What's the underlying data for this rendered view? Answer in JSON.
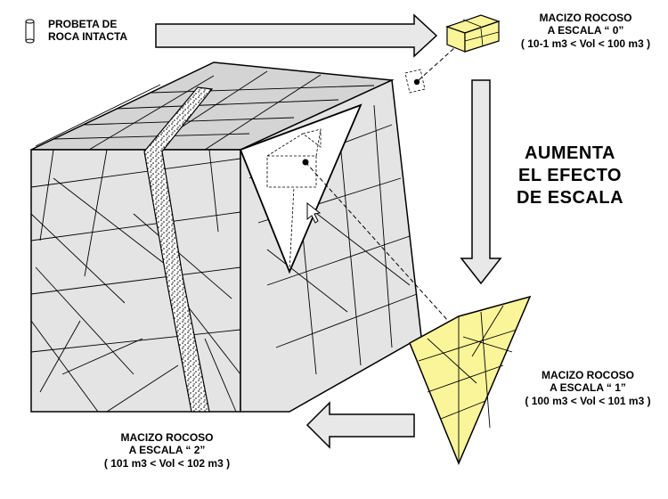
{
  "labels": {
    "probeta": {
      "line1": "PROBETA DE",
      "line2": "ROCA INTACTA"
    },
    "scale0": {
      "line1": "MACIZO ROCOSO",
      "line2": "A ESCALA “ 0”",
      "line3": "( 10-1 m3 < Vol < 100 m3 )"
    },
    "scale1": {
      "line1": "MACIZO ROCOSO",
      "line2": "A ESCALA “ 1”",
      "line3": "( 100 m3 < Vol < 101 m3 )"
    },
    "scale2": {
      "line1": "MACIZO ROCOSO",
      "line2": "A ESCALA “ 2”",
      "line3": "( 101 m3 < Vol < 102 m3 )"
    },
    "effect": {
      "line1": "AUMENTA",
      "line2": "EL EFECTO",
      "line3": "DE ESCALA"
    }
  },
  "colors": {
    "block_face": "#e4e4e4",
    "block_top": "#d4d4d4",
    "sample_fill": "#fbf59a",
    "arrow_fill": "#e8e8e8",
    "outline": "#000000"
  },
  "icons": {
    "probe": "cylinder-icon",
    "arrows": "block-arrow-icon"
  }
}
